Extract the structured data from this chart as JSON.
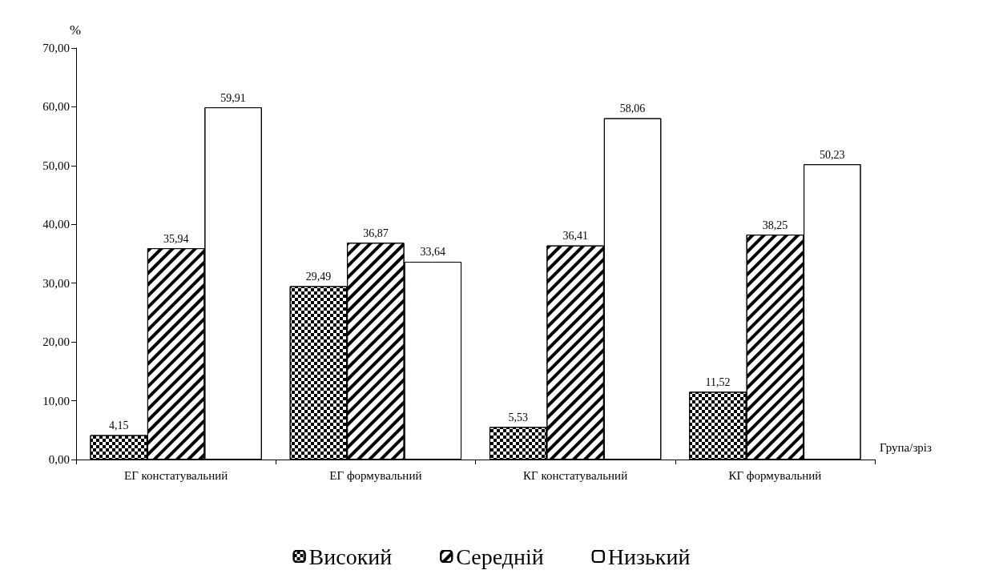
{
  "chart_data": {
    "type": "bar",
    "ylabel": "%",
    "xlabel": "Група/зріз",
    "categories": [
      "ЕГ констатувальний",
      "ЕГ формувальний",
      "КГ констатувальний",
      "КГ формувальний"
    ],
    "series": [
      {
        "name": "Високий",
        "color": "#000000",
        "values": [
          4.15,
          29.49,
          5.53,
          11.52
        ],
        "value_labels": [
          "4,15",
          "29,49",
          "5,53",
          "11,52"
        ]
      },
      {
        "name": "Середній",
        "color": "#000000",
        "values": [
          35.94,
          36.87,
          36.41,
          38.25
        ],
        "value_labels": [
          "35,94",
          "36,87",
          "36,41",
          "38,25"
        ]
      },
      {
        "name": "Низький",
        "color": "#000000",
        "values": [
          59.91,
          33.64,
          58.06,
          50.23
        ],
        "value_labels": [
          "59,91",
          "33,64",
          "58,06",
          "50,23"
        ]
      }
    ],
    "ylim": [
      0,
      70
    ],
    "yticks": [
      {
        "value": 0,
        "label": "0,00"
      },
      {
        "value": 10,
        "label": "10,00"
      },
      {
        "value": 20,
        "label": "20,00"
      },
      {
        "value": 30,
        "label": "30,00"
      },
      {
        "value": 40,
        "label": "40,00"
      },
      {
        "value": 50,
        "label": "50,00"
      },
      {
        "value": 60,
        "label": "60,00"
      },
      {
        "value": 70,
        "label": "70,00"
      }
    ],
    "grid": false,
    "legend": "bottom"
  }
}
